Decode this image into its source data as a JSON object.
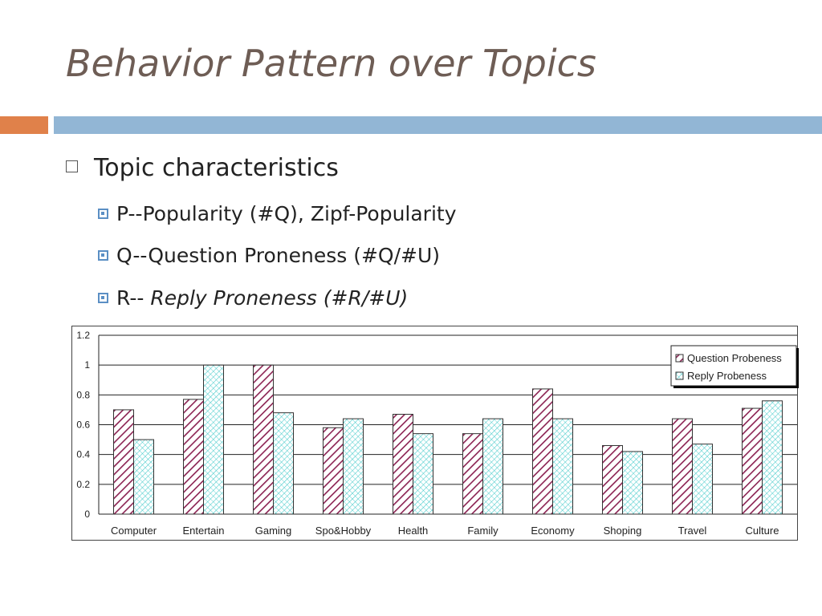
{
  "slide": {
    "title": "Behavior Pattern over Topics",
    "bullet": "Topic characteristics",
    "sub1": "P--Popularity  (#Q), Zipf-Popularity",
    "sub2": "Q--Question Proneness (#Q/#U)",
    "sub3_prefix": "R-- ",
    "sub3_italic": "Reply Proneness (#R/#U)"
  },
  "colors": {
    "title": "#6e5d55",
    "accent_orange": "#e0814a",
    "accent_blue": "#92b6d5",
    "question_hatch": "#8b2252",
    "reply_hatch": "#3cc8c8"
  },
  "chart_data": {
    "type": "bar",
    "categories": [
      "Computer",
      "Entertain",
      "Gaming",
      "Spo&Hobby",
      "Health",
      "Family",
      "Economy",
      "Shoping",
      "Travel",
      "Culture"
    ],
    "series": [
      {
        "name": "Question Probeness",
        "values": [
          0.7,
          0.77,
          1.0,
          0.58,
          0.67,
          0.54,
          0.84,
          0.46,
          0.64,
          0.71
        ]
      },
      {
        "name": "Reply Probeness",
        "values": [
          0.5,
          1.0,
          0.68,
          0.64,
          0.54,
          0.64,
          0.64,
          0.42,
          0.47,
          0.76
        ]
      }
    ],
    "ylim": [
      0,
      1.2
    ],
    "yticks": [
      "0",
      "0.2",
      "0.4",
      "0.6",
      "0.8",
      "1",
      "1.2"
    ],
    "grid": true,
    "legend": "top-right"
  }
}
